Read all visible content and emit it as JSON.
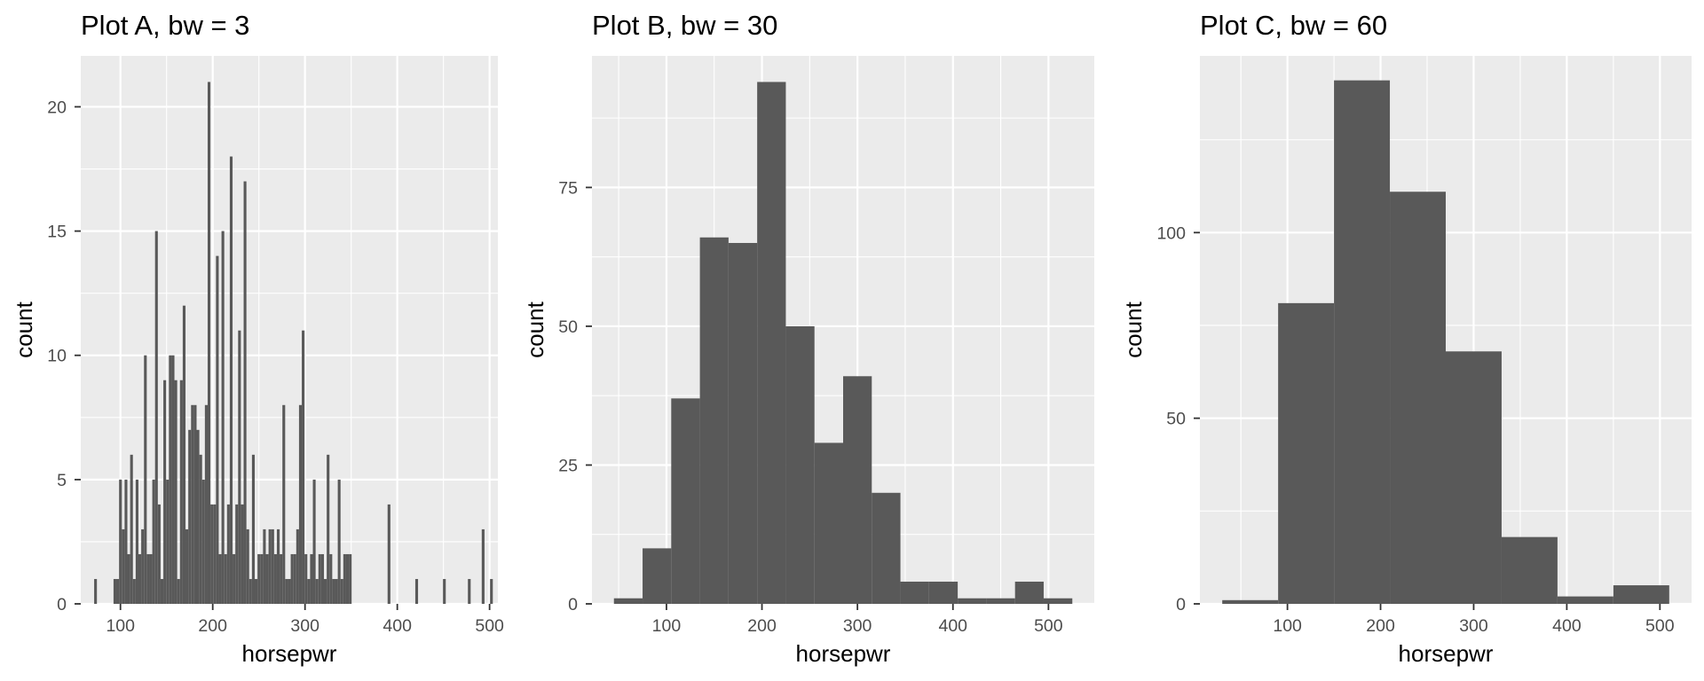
{
  "colors": {
    "panel_bg": "#ebebeb",
    "grid": "#ffffff",
    "bar": "#595959",
    "tick": "#333333",
    "tick_label": "#4d4d4d"
  },
  "chart_data": [
    {
      "type": "bar",
      "title": "Plot A, bw = 3",
      "xlabel": "horsepwr",
      "ylabel": "count",
      "xlim": [
        57,
        509
      ],
      "ylim": [
        0,
        22.05
      ],
      "x_ticks": [
        100,
        200,
        300,
        400,
        500
      ],
      "x_tick_labels": [
        "100",
        "200",
        "300",
        "400",
        "500"
      ],
      "y_ticks": [
        0,
        5,
        10,
        15,
        20
      ],
      "y_tick_labels": [
        "0",
        "5",
        "10",
        "15",
        "20"
      ],
      "grid": true,
      "binwidth": 3,
      "bins": [
        [
          73,
          1
        ],
        [
          94,
          1
        ],
        [
          97,
          1
        ],
        [
          100,
          5
        ],
        [
          103,
          3
        ],
        [
          106,
          5
        ],
        [
          109,
          2
        ],
        [
          112,
          6
        ],
        [
          115,
          1
        ],
        [
          118,
          5
        ],
        [
          121,
          2
        ],
        [
          124,
          3
        ],
        [
          127,
          10
        ],
        [
          130,
          2
        ],
        [
          133,
          2
        ],
        [
          136,
          5
        ],
        [
          139,
          15
        ],
        [
          142,
          4
        ],
        [
          145,
          1
        ],
        [
          148,
          9
        ],
        [
          151,
          5
        ],
        [
          154,
          10
        ],
        [
          157,
          10
        ],
        [
          160,
          9
        ],
        [
          163,
          1
        ],
        [
          166,
          9
        ],
        [
          169,
          12
        ],
        [
          172,
          3
        ],
        [
          175,
          7
        ],
        [
          178,
          8
        ],
        [
          181,
          8
        ],
        [
          184,
          7
        ],
        [
          187,
          6
        ],
        [
          190,
          5
        ],
        [
          193,
          8
        ],
        [
          196,
          21
        ],
        [
          199,
          4
        ],
        [
          202,
          4
        ],
        [
          205,
          14
        ],
        [
          208,
          2
        ],
        [
          211,
          15
        ],
        [
          214,
          2
        ],
        [
          217,
          4
        ],
        [
          220,
          18
        ],
        [
          223,
          2
        ],
        [
          226,
          4
        ],
        [
          229,
          11
        ],
        [
          232,
          4
        ],
        [
          235,
          17
        ],
        [
          238,
          3
        ],
        [
          241,
          1
        ],
        [
          244,
          6
        ],
        [
          247,
          1
        ],
        [
          250,
          2
        ],
        [
          253,
          2
        ],
        [
          256,
          3
        ],
        [
          259,
          2
        ],
        [
          262,
          3
        ],
        [
          265,
          3
        ],
        [
          268,
          2
        ],
        [
          271,
          3
        ],
        [
          274,
          2
        ],
        [
          277,
          8
        ],
        [
          280,
          1
        ],
        [
          283,
          1
        ],
        [
          286,
          2
        ],
        [
          289,
          2
        ],
        [
          292,
          3
        ],
        [
          295,
          8
        ],
        [
          298,
          11
        ],
        [
          301,
          2
        ],
        [
          304,
          1
        ],
        [
          307,
          2
        ],
        [
          310,
          5
        ],
        [
          313,
          1
        ],
        [
          316,
          2
        ],
        [
          319,
          2
        ],
        [
          322,
          1
        ],
        [
          325,
          6
        ],
        [
          328,
          2
        ],
        [
          331,
          1
        ],
        [
          334,
          1
        ],
        [
          337,
          5
        ],
        [
          340,
          1
        ],
        [
          343,
          2
        ],
        [
          346,
          2
        ],
        [
          349,
          2
        ],
        [
          391,
          4
        ],
        [
          421,
          1
        ],
        [
          451,
          1
        ],
        [
          478,
          1
        ],
        [
          493,
          3
        ],
        [
          502,
          1
        ]
      ]
    },
    {
      "type": "bar",
      "title": "Plot B, bw = 30",
      "xlabel": "horsepwr",
      "ylabel": "count",
      "xlim": [
        22,
        548
      ],
      "ylim": [
        0,
        98.7
      ],
      "x_ticks": [
        100,
        200,
        300,
        400,
        500
      ],
      "x_tick_labels": [
        "100",
        "200",
        "300",
        "400",
        "500"
      ],
      "y_ticks": [
        0,
        25,
        50,
        75
      ],
      "y_tick_labels": [
        "0",
        "25",
        "50",
        "75"
      ],
      "grid": true,
      "binwidth": 30,
      "bins": [
        [
          60,
          1
        ],
        [
          90,
          10
        ],
        [
          120,
          37
        ],
        [
          150,
          66
        ],
        [
          180,
          65
        ],
        [
          210,
          94
        ],
        [
          240,
          50
        ],
        [
          270,
          29
        ],
        [
          300,
          41
        ],
        [
          330,
          20
        ],
        [
          360,
          4
        ],
        [
          390,
          4
        ],
        [
          420,
          1
        ],
        [
          450,
          1
        ],
        [
          480,
          4
        ],
        [
          510,
          1
        ]
      ]
    },
    {
      "type": "bar",
      "title": "Plot C, bw = 60",
      "xlabel": "horsepwr",
      "ylabel": "count",
      "xlim": [
        6,
        534
      ],
      "ylim": [
        0,
        147.6
      ],
      "x_ticks": [
        100,
        200,
        300,
        400,
        500
      ],
      "x_tick_labels": [
        "100",
        "200",
        "300",
        "400",
        "500"
      ],
      "y_ticks": [
        0,
        50,
        100
      ],
      "y_tick_labels": [
        "0",
        "50",
        "100"
      ],
      "grid": true,
      "binwidth": 60,
      "bins": [
        [
          60,
          1
        ],
        [
          120,
          81
        ],
        [
          180,
          141
        ],
        [
          240,
          111
        ],
        [
          300,
          68
        ],
        [
          360,
          18
        ],
        [
          420,
          2
        ],
        [
          480,
          5
        ]
      ]
    }
  ]
}
